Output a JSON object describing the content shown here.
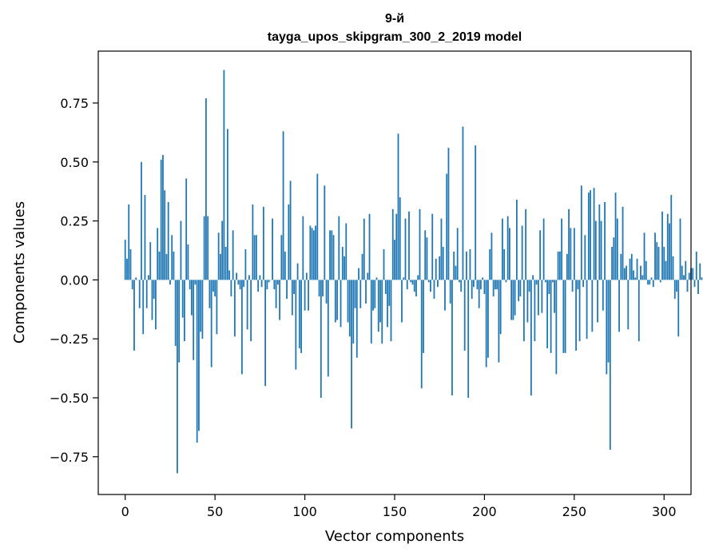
{
  "chart_data": {
    "type": "bar",
    "title": "9-й",
    "subtitle": "tayga_upos_skipgram_300_2_2019 model",
    "xlabel": "Vector components",
    "ylabel": "Components values",
    "xlim": [
      -15,
      315
    ],
    "ylim": [
      -0.91,
      0.97
    ],
    "xticks": [
      0,
      50,
      100,
      150,
      200,
      250,
      300
    ],
    "yticks": [
      -0.75,
      -0.5,
      -0.25,
      0.0,
      0.25,
      0.5,
      0.75
    ],
    "xtick_labels": [
      "0",
      "50",
      "100",
      "150",
      "200",
      "250",
      "300"
    ],
    "ytick_labels": [
      "−0.75",
      "−0.50",
      "−0.25",
      "0.00",
      "0.25",
      "0.50",
      "0.75"
    ],
    "bar_color": "#1f77b4",
    "grid": false,
    "values": [
      0.17,
      0.09,
      0.32,
      0.13,
      -0.04,
      -0.3,
      0.01,
      0.0,
      -0.12,
      0.5,
      -0.23,
      0.36,
      -0.12,
      0.02,
      0.16,
      -0.17,
      -0.08,
      -0.21,
      0.22,
      0.12,
      0.51,
      0.53,
      0.38,
      0.11,
      0.33,
      -0.02,
      0.19,
      0.12,
      -0.28,
      -0.82,
      -0.35,
      0.25,
      -0.16,
      -0.26,
      0.43,
      0.15,
      -0.04,
      -0.15,
      -0.34,
      -0.02,
      -0.69,
      -0.64,
      -0.22,
      -0.25,
      0.27,
      0.77,
      0.27,
      -0.12,
      -0.37,
      -0.05,
      -0.07,
      -0.23,
      0.2,
      0.11,
      0.25,
      0.89,
      0.14,
      0.64,
      0.04,
      -0.07,
      0.21,
      -0.24,
      0.03,
      -0.02,
      -0.04,
      -0.4,
      -0.03,
      0.13,
      -0.21,
      0.02,
      -0.26,
      0.32,
      0.19,
      0.19,
      -0.05,
      0.02,
      -0.03,
      0.31,
      -0.45,
      -0.04,
      -0.01,
      0.0,
      0.26,
      -0.04,
      -0.12,
      -0.02,
      -0.17,
      0.19,
      0.63,
      0.12,
      -0.08,
      0.32,
      0.42,
      -0.15,
      -0.06,
      -0.38,
      0.07,
      -0.29,
      -0.31,
      0.27,
      -0.13,
      0.03,
      -0.13,
      0.23,
      0.22,
      0.21,
      0.23,
      0.45,
      -0.07,
      -0.5,
      -0.07,
      0.4,
      -0.1,
      -0.41,
      0.21,
      0.21,
      0.19,
      -0.18,
      -0.17,
      0.27,
      -0.2,
      0.14,
      0.1,
      0.24,
      -0.18,
      -0.24,
      -0.63,
      -0.27,
      -0.12,
      -0.33,
      0.05,
      -0.12,
      0.11,
      0.26,
      -0.1,
      0.03,
      0.28,
      -0.27,
      -0.13,
      -0.12,
      0.01,
      -0.22,
      -0.18,
      -0.27,
      0.13,
      -0.06,
      -0.2,
      -0.11,
      -0.26,
      0.3,
      0.17,
      0.28,
      0.62,
      0.35,
      -0.18,
      0.01,
      0.26,
      -0.04,
      0.29,
      -0.01,
      -0.02,
      -0.05,
      -0.07,
      0.02,
      0.3,
      -0.46,
      -0.31,
      0.21,
      0.18,
      -0.01,
      -0.05,
      0.28,
      -0.08,
      0.09,
      -0.03,
      0.1,
      0.26,
      0.14,
      -0.13,
      0.45,
      0.56,
      -0.1,
      -0.49,
      0.12,
      0.06,
      0.22,
      -0.01,
      -0.05,
      0.65,
      -0.3,
      0.12,
      -0.5,
      0.13,
      -0.08,
      -0.03,
      0.57,
      -0.04,
      -0.12,
      -0.04,
      0.01,
      -0.06,
      -0.37,
      -0.33,
      0.13,
      0.2,
      -0.07,
      -0.04,
      -0.04,
      -0.35,
      -0.23,
      0.26,
      0.13,
      -0.01,
      0.27,
      0.22,
      -0.17,
      -0.17,
      -0.15,
      0.34,
      -0.09,
      -0.07,
      0.23,
      -0.26,
      0.3,
      -0.18,
      -0.05,
      -0.49,
      0.02,
      -0.26,
      -0.02,
      -0.15,
      0.21,
      -0.14,
      0.26,
      -0.01,
      -0.29,
      -0.06,
      -0.31,
      -0.01,
      -0.14,
      -0.4,
      0.12,
      0.12,
      0.26,
      -0.31,
      -0.31,
      0.11,
      0.3,
      0.22,
      -0.05,
      0.22,
      -0.3,
      -0.04,
      -0.26,
      0.4,
      -0.03,
      0.19,
      -0.25,
      0.37,
      0.38,
      -0.22,
      0.39,
      0.25,
      -0.18,
      0.32,
      0.25,
      -0.13,
      0.33,
      -0.4,
      -0.35,
      -0.72,
      0.14,
      0.18,
      0.37,
      0.26,
      -0.22,
      0.11,
      0.31,
      0.05,
      0.06,
      -0.21,
      0.09,
      0.11,
      0.04,
      0.01,
      0.09,
      -0.26,
      0.06,
      0.02,
      0.2,
      0.08,
      -0.02,
      -0.02,
      0.01,
      -0.03,
      0.2,
      0.16,
      0.14,
      -0.01,
      0.29,
      0.14,
      0.08,
      0.28,
      0.24,
      0.36,
      0.1,
      -0.08,
      -0.05,
      -0.24,
      0.26,
      0.06,
      0.02,
      0.08,
      -0.05,
      0.03,
      0.05,
      0.05,
      -0.03,
      0.12,
      -0.06,
      0.07,
      0.01
    ]
  }
}
